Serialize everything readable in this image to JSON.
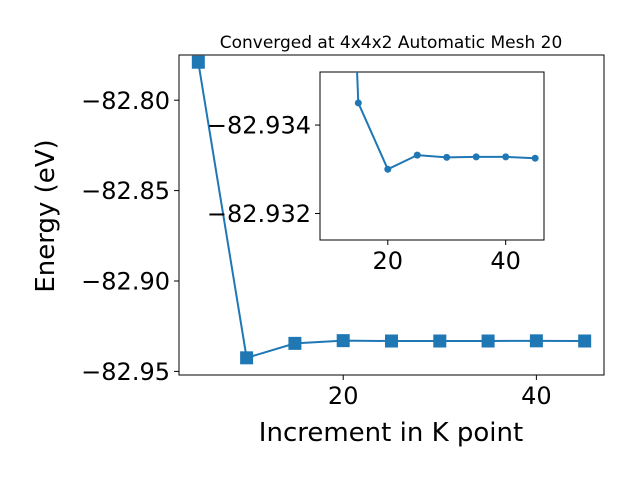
{
  "chart_data": [
    {
      "type": "line",
      "title": "Converged at 4x4x2 Automatic Mesh 20",
      "xlabel": "Increment in K point",
      "ylabel": "Energy (eV)",
      "x": [
        5,
        10,
        15,
        20,
        25,
        30,
        35,
        40,
        45
      ],
      "series": [
        {
          "values": [
            -82.779,
            -82.9425,
            -82.9345,
            -82.933,
            -82.9332,
            -82.9332,
            -82.9332,
            -82.9331,
            -82.9332
          ]
        }
      ],
      "xlim": [
        3.0,
        47.0
      ],
      "ylim": [
        -82.952,
        -82.775
      ],
      "xticks": [
        20,
        40
      ],
      "xtick_labels": [
        "20",
        "40"
      ],
      "yticks": [
        -82.8,
        -82.85,
        -82.9,
        -82.95
      ],
      "ytick_labels": [
        "−82.80",
        "−82.85",
        "−82.90",
        "−82.95"
      ],
      "marker": "square",
      "color": "#1f77b4"
    },
    {
      "type": "line",
      "title": "",
      "xlabel": "",
      "ylabel": "",
      "x": [
        15,
        20,
        25,
        30,
        35,
        40,
        45
      ],
      "series": [
        {
          "values": [
            -82.9345,
            -82.933,
            -82.93332,
            -82.93327,
            -82.93328,
            -82.93328,
            -82.93325
          ]
        }
      ],
      "xlim": [
        8.5,
        46.5
      ],
      "ylim": [
        -82.9314,
        -82.9352
      ],
      "xticks": [
        20,
        40
      ],
      "xtick_labels": [
        "20",
        "40"
      ],
      "yticks": [
        -82.934,
        -82.932
      ],
      "ytick_labels": [
        "−82.934",
        "−82.932"
      ],
      "marker": "circle",
      "color": "#1f77b4",
      "clip_note": ""
    }
  ]
}
